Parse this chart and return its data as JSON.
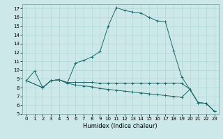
{
  "xlabel": "Humidex (Indice chaleur)",
  "bg_color": "#cce8e8",
  "line_color": "#1a6b6b",
  "xlim": [
    -0.5,
    23.5
  ],
  "ylim": [
    5,
    17.5
  ],
  "xticks": [
    0,
    1,
    2,
    3,
    4,
    5,
    6,
    7,
    8,
    9,
    10,
    11,
    12,
    13,
    14,
    15,
    16,
    17,
    18,
    19,
    20,
    21,
    22,
    23
  ],
  "yticks": [
    5,
    6,
    7,
    8,
    9,
    10,
    11,
    12,
    13,
    14,
    15,
    16,
    17
  ],
  "curve1_x": [
    0,
    1,
    2,
    3,
    4,
    5,
    6,
    7,
    8,
    9,
    10,
    11,
    12,
    13,
    14,
    15,
    16,
    17,
    18,
    19,
    20,
    21,
    22,
    23
  ],
  "curve1_y": [
    8.8,
    9.9,
    8.0,
    8.8,
    8.9,
    8.5,
    10.8,
    11.1,
    11.5,
    12.1,
    15.0,
    17.1,
    16.8,
    16.6,
    16.5,
    16.0,
    15.6,
    15.5,
    12.2,
    9.2,
    7.8,
    6.3,
    6.2,
    5.3
  ],
  "curve2_x": [
    0,
    2,
    3,
    4,
    5,
    6,
    7,
    8,
    9,
    10,
    11,
    12,
    13,
    14,
    15,
    16,
    17,
    18,
    19,
    20,
    21,
    22,
    23
  ],
  "curve2_y": [
    8.8,
    8.0,
    8.8,
    8.9,
    8.6,
    8.6,
    8.6,
    8.6,
    8.5,
    8.5,
    8.5,
    8.5,
    8.5,
    8.5,
    8.5,
    8.5,
    8.5,
    8.5,
    8.5,
    7.8,
    6.3,
    6.2,
    5.3
  ],
  "curve3_x": [
    0,
    2,
    3,
    4,
    5,
    6,
    7,
    8,
    9,
    10,
    11,
    12,
    13,
    14,
    15,
    16,
    17,
    18,
    19,
    20,
    21,
    22,
    23
  ],
  "curve3_y": [
    8.8,
    8.0,
    8.8,
    8.9,
    8.5,
    8.3,
    8.2,
    8.1,
    7.9,
    7.8,
    7.7,
    7.6,
    7.5,
    7.4,
    7.3,
    7.2,
    7.1,
    7.0,
    6.9,
    7.8,
    6.3,
    6.2,
    5.3
  ],
  "xlabel_fontsize": 6,
  "tick_fontsize": 5
}
